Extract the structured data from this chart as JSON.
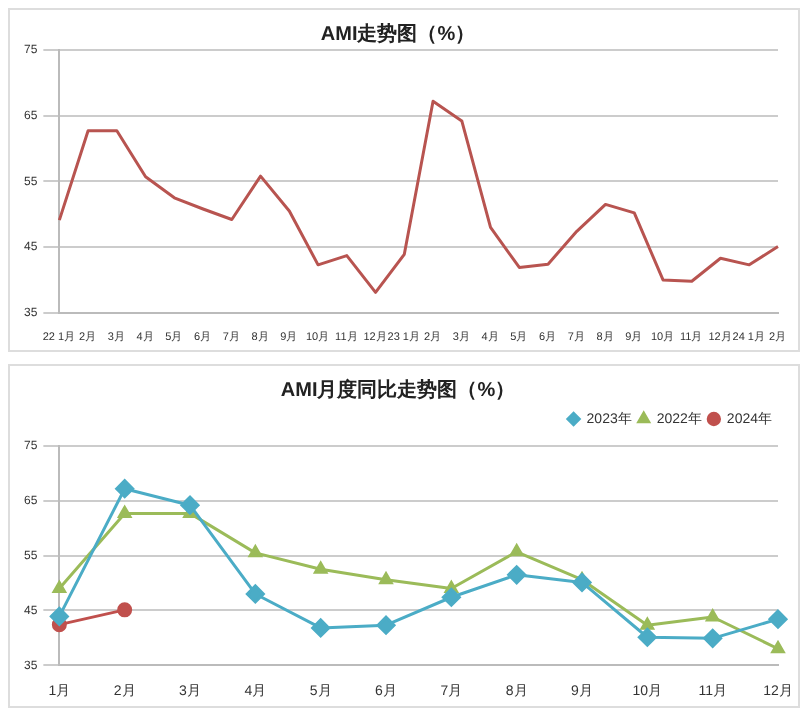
{
  "chart_data": [
    {
      "type": "line",
      "title": "AMI走势图（%）",
      "categories": [
        "22 1月",
        "2月",
        "3月",
        "4月",
        "5月",
        "6月",
        "7月",
        "8月",
        "9月",
        "10月",
        "11月",
        "12月",
        "23 1月",
        "2月",
        "3月",
        "4月",
        "5月",
        "6月",
        "7月",
        "8月",
        "9月",
        "10月",
        "11月",
        "12月",
        "24 1月",
        "2月"
      ],
      "series": [
        {
          "color": "#b85450",
          "values": [
            49.1,
            62.7,
            62.7,
            55.7,
            52.5,
            50.8,
            49.2,
            55.8,
            50.5,
            42.3,
            43.7,
            38.1,
            43.9,
            67.2,
            64.2,
            48.0,
            41.9,
            42.4,
            47.4,
            51.5,
            50.2,
            40.0,
            39.8,
            43.3,
            42.3,
            45.1
          ]
        }
      ],
      "ylim": [
        35,
        75
      ],
      "yticks": [
        35,
        45,
        55,
        65,
        75
      ],
      "grid": "y",
      "legend": false,
      "marker": "none"
    },
    {
      "type": "line",
      "title": "AMI月度同比走势图（%）",
      "categories": [
        "1月",
        "2月",
        "3月",
        "4月",
        "5月",
        "6月",
        "7月",
        "8月",
        "9月",
        "10月",
        "11月",
        "12月"
      ],
      "series": [
        {
          "name": "2022年",
          "color": "#9bbb59",
          "marker": "triangle",
          "values": [
            49.0,
            62.7,
            62.7,
            55.5,
            52.5,
            50.6,
            49.0,
            55.7,
            50.6,
            42.3,
            43.8,
            38.0
          ]
        },
        {
          "name": "2023年",
          "color": "#4bacc6",
          "marker": "diamond",
          "values": [
            43.9,
            67.2,
            64.2,
            48.0,
            41.8,
            42.3,
            47.4,
            51.5,
            50.1,
            40.1,
            39.9,
            43.4
          ]
        },
        {
          "name": "2024年",
          "color": "#c0504d",
          "marker": "circle",
          "values": [
            42.4,
            45.1,
            null,
            null,
            null,
            null,
            null,
            null,
            null,
            null,
            null,
            null
          ]
        }
      ],
      "ylim": [
        35,
        75
      ],
      "yticks": [
        35,
        45,
        55,
        65,
        75
      ],
      "grid": "y",
      "legend": "top right"
    }
  ]
}
